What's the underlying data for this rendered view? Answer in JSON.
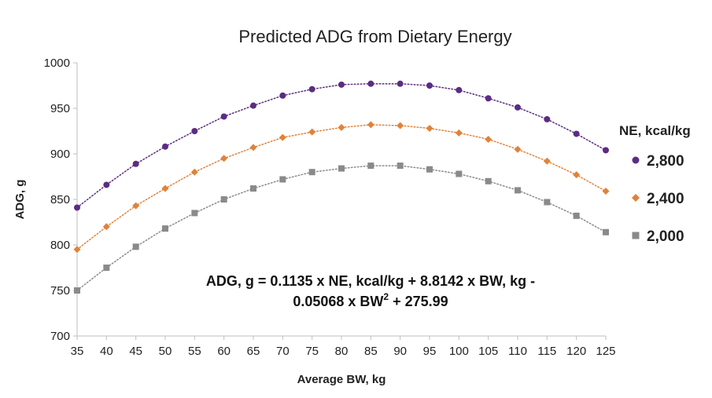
{
  "chart_data": {
    "type": "scatter",
    "title": "Predicted ADG from Dietary Energy",
    "xlabel": "Average BW, kg",
    "ylabel": "ADG, g",
    "xlim": [
      35,
      125
    ],
    "ylim": [
      700,
      1000
    ],
    "x_ticks": [
      "35",
      "40",
      "45",
      "50",
      "55",
      "60",
      "65",
      "70",
      "75",
      "80",
      "85",
      "90",
      "95",
      "100",
      "105",
      "110",
      "115",
      "120",
      "125"
    ],
    "y_ticks": [
      "700",
      "750",
      "800",
      "850",
      "900",
      "950",
      "1000"
    ],
    "x_tick_values": [
      35,
      40,
      45,
      50,
      55,
      60,
      65,
      70,
      75,
      80,
      85,
      90,
      95,
      100,
      105,
      110,
      115,
      120,
      125
    ],
    "y_tick_values": [
      700,
      750,
      800,
      850,
      900,
      950,
      1000
    ],
    "x": [
      35,
      40,
      45,
      50,
      55,
      60,
      65,
      70,
      75,
      80,
      85,
      90,
      95,
      100,
      105,
      110,
      115,
      120,
      125
    ],
    "legend_title": "NE, kcal/kg",
    "legend_position": "right",
    "grid": false,
    "trendline": "dotted polynomial",
    "series": [
      {
        "name": "2,800",
        "color": "#5b2c83",
        "marker": "circle",
        "values": [
          841,
          866,
          889,
          908,
          925,
          941,
          953,
          964,
          971,
          976,
          977,
          977,
          975,
          970,
          961,
          951,
          938,
          922,
          904
        ]
      },
      {
        "name": "2,400",
        "color": "#e0823a",
        "marker": "diamond",
        "values": [
          795,
          820,
          843,
          862,
          880,
          895,
          907,
          918,
          924,
          929,
          932,
          931,
          928,
          923,
          916,
          905,
          892,
          877,
          859
        ]
      },
      {
        "name": "2,000",
        "color": "#8a8a8a",
        "marker": "square",
        "values": [
          750,
          775,
          798,
          818,
          835,
          850,
          862,
          872,
          880,
          884,
          887,
          887,
          883,
          878,
          870,
          860,
          847,
          832,
          814
        ]
      }
    ],
    "annotation": {
      "line1": "ADG, g = 0.1135 x NE, kcal/kg + 8.8142 x BW, kg -",
      "line2_prefix": "0.05068 x BW",
      "line2_sup": "2",
      "line2_suffix": " + 275.99"
    }
  }
}
